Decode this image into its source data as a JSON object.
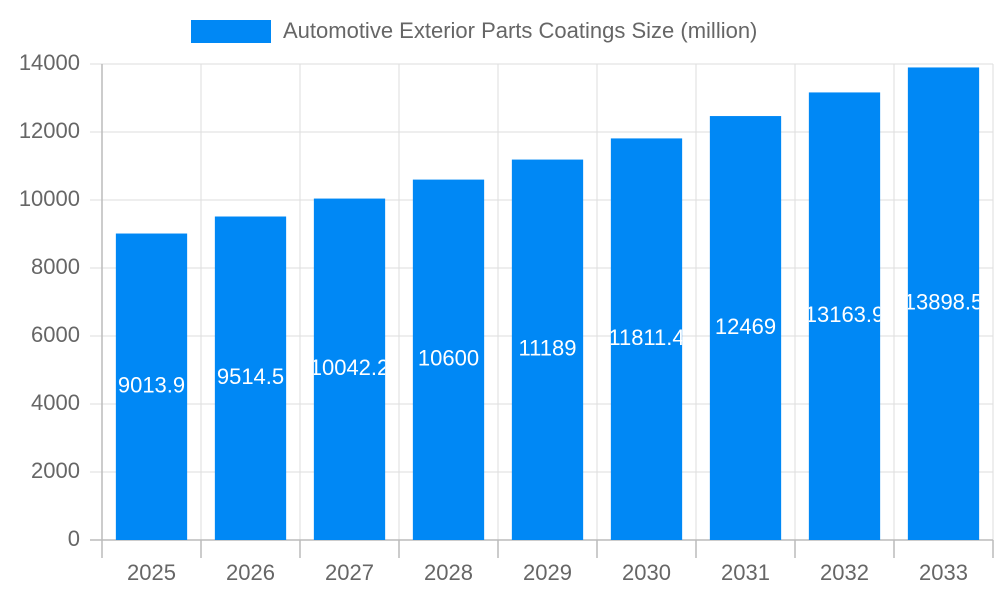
{
  "chart_data": {
    "type": "bar",
    "legend_label": "Automotive Exterior Parts Coatings Size (million)",
    "categories": [
      "2025",
      "2026",
      "2027",
      "2028",
      "2029",
      "2030",
      "2031",
      "2032",
      "2033"
    ],
    "values": [
      9013.9,
      9514.5,
      10042.2,
      10600,
      11189,
      11811.4,
      12469,
      13163.9,
      13898.5
    ],
    "color": "#0088f5",
    "ylim": [
      0,
      14000
    ],
    "yticks": [
      0,
      2000,
      4000,
      6000,
      8000,
      10000,
      12000,
      14000
    ],
    "grid": true
  }
}
